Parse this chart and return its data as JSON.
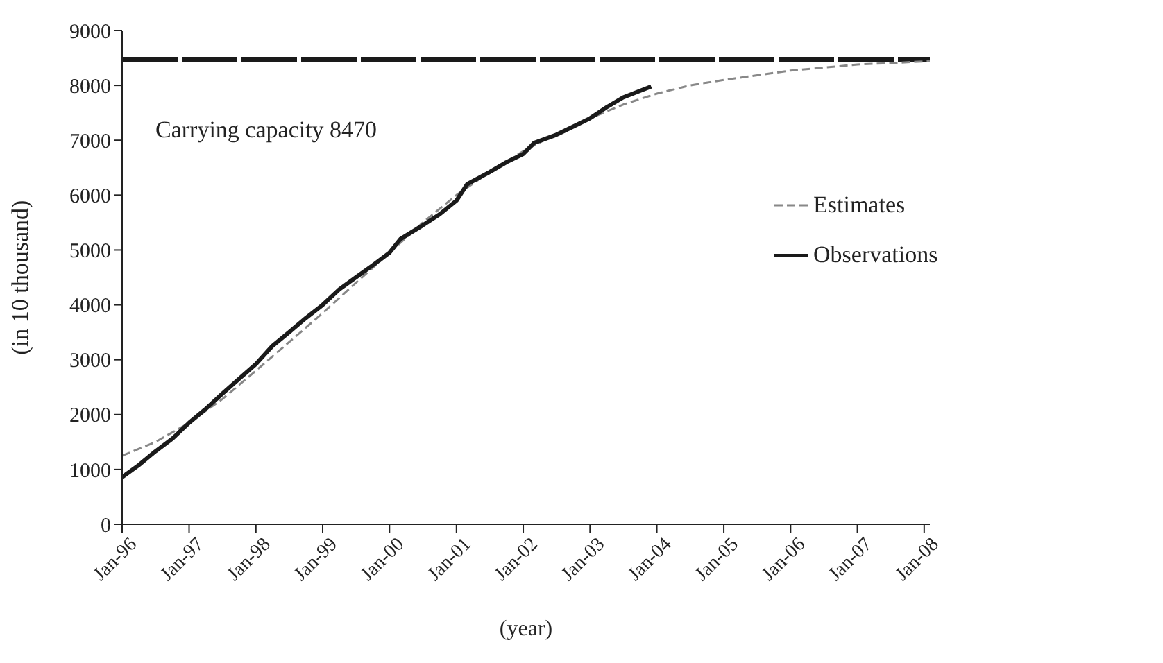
{
  "chart_data": {
    "type": "line",
    "xlabel": "(year)",
    "ylabel": "(in 10 thousand)",
    "xlim": [
      "1996-01",
      "2008-02"
    ],
    "xticks": [
      {
        "value": "1996-01",
        "label": "Jan-96"
      },
      {
        "value": "1997-01",
        "label": "Jan-97"
      },
      {
        "value": "1998-01",
        "label": "Jan-98"
      },
      {
        "value": "1999-01",
        "label": "Jan-99"
      },
      {
        "value": "2000-01",
        "label": "Jan-00"
      },
      {
        "value": "2001-01",
        "label": "Jan-01"
      },
      {
        "value": "2002-01",
        "label": "Jan-02"
      },
      {
        "value": "2003-01",
        "label": "Jan-03"
      },
      {
        "value": "2004-01",
        "label": "Jan-04"
      },
      {
        "value": "2005-01",
        "label": "Jan-05"
      },
      {
        "value": "2006-01",
        "label": "Jan-06"
      },
      {
        "value": "2007-01",
        "label": "Jan-07"
      },
      {
        "value": "2008-01",
        "label": "Jan-08"
      }
    ],
    "ylim": [
      0,
      9000
    ],
    "yticks": [
      0,
      1000,
      2000,
      3000,
      4000,
      5000,
      6000,
      7000,
      8000,
      9000
    ],
    "grid": false,
    "legend": "right",
    "marker": "none",
    "ref_lines": [
      {
        "axis": "y",
        "value": 8470,
        "label": "Carrying capacity 8470",
        "color": "#1a1a1a",
        "line_style": "dashed"
      }
    ],
    "series": [
      {
        "name": "Estimates",
        "color": "#888888",
        "line_style": "dashed",
        "x": [
          "1996-01",
          "1996-07",
          "1997-01",
          "1997-07",
          "1998-01",
          "1998-07",
          "1999-01",
          "1999-07",
          "2000-01",
          "2000-07",
          "2001-01",
          "2001-07",
          "2002-01",
          "2002-07",
          "2003-01",
          "2003-07",
          "2004-01",
          "2004-07",
          "2005-01",
          "2006-01",
          "2007-01",
          "2008-02"
        ],
        "values": [
          1250,
          1500,
          1850,
          2280,
          2800,
          3320,
          3850,
          4400,
          4950,
          5500,
          6000,
          6420,
          6800,
          7120,
          7400,
          7650,
          7850,
          8000,
          8100,
          8270,
          8380,
          8440
        ]
      },
      {
        "name": "Observations",
        "color": "#1a1a1a",
        "line_style": "solid",
        "x": [
          "1996-01",
          "1996-04",
          "1996-07",
          "1996-10",
          "1997-01",
          "1997-04",
          "1997-07",
          "1997-10",
          "1998-01",
          "1998-04",
          "1998-07",
          "1998-10",
          "1999-01",
          "1999-04",
          "1999-07",
          "1999-10",
          "2000-01",
          "2000-03",
          "2000-07",
          "2000-10",
          "2001-01",
          "2001-03",
          "2001-07",
          "2001-10",
          "2002-01",
          "2002-03",
          "2002-07",
          "2002-10",
          "2003-01",
          "2003-04",
          "2003-07",
          "2003-12"
        ],
        "values": [
          860,
          1080,
          1330,
          1560,
          1850,
          2100,
          2380,
          2650,
          2920,
          3250,
          3500,
          3760,
          4000,
          4280,
          4500,
          4720,
          4950,
          5200,
          5450,
          5650,
          5900,
          6200,
          6420,
          6600,
          6750,
          6950,
          7100,
          7250,
          7400,
          7600,
          7780,
          7980
        ]
      }
    ]
  }
}
